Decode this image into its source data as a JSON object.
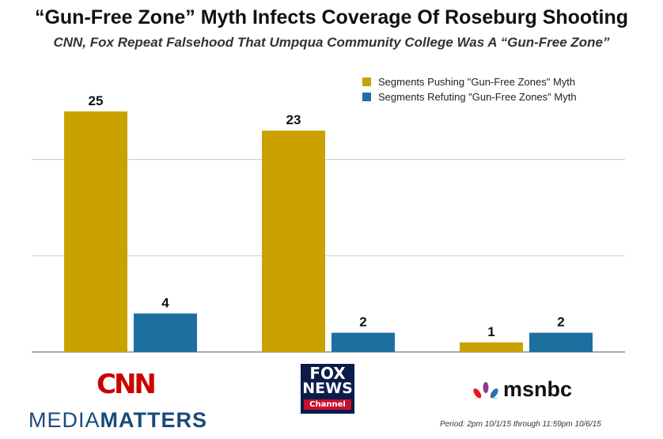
{
  "title": "“Gun-Free Zone” Myth Infects Coverage Of Roseburg Shooting",
  "subtitle": "CNN, Fox Repeat Falsehood That Umpqua Community College Was A “Gun-Free Zone”",
  "chart_data": {
    "type": "bar",
    "categories": [
      "CNN",
      "FOX NEWS",
      "msnbc"
    ],
    "series": [
      {
        "name": "Segments Pushing \"Gun-Free Zones\" Myth",
        "values": [
          25,
          23,
          1
        ],
        "color": "#c9a200"
      },
      {
        "name": "Segments Refuting \"Gun-Free Zones\" Myth",
        "values": [
          4,
          2,
          2
        ],
        "color": "#1d6fa0"
      }
    ],
    "ylim": [
      0,
      30
    ],
    "grid": true,
    "legend": "top-right"
  },
  "logos": {
    "cnn": "CNN",
    "fox_top": "FOX",
    "fox_middle": "NEWS",
    "fox_bottom": "Channel",
    "msnbc": "msnbc",
    "media": "MEDIA",
    "matters": "MATTERS"
  },
  "period": "Period: 2pm 10/1/15 through 11:59pm 10/6/15"
}
